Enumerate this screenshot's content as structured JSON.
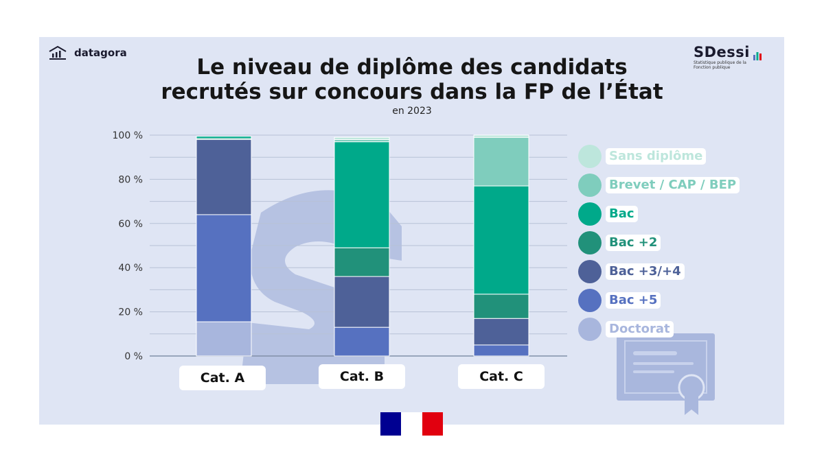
{
  "header": {
    "left_logo": "datagora",
    "right_logo": "SDessi",
    "right_logo_sub": "Statistique publique de la Fonction publique",
    "title_line1": "Le niveau de diplôme des candidats",
    "title_line2": "recrutés sur concours dans la FP de l’État",
    "subtitle": "en 2023"
  },
  "colors": {
    "Sans diplôme": "#bde6dc",
    "Brevet / CAP / BEP": "#7fcdbd",
    "Bac": "#00a98a",
    "Bac +2": "#21917a",
    "Bac +3/+4": "#4e6198",
    "Bac +5": "#5671c0",
    "Doctorat": "#a8b6dd"
  },
  "chart_data": {
    "type": "bar",
    "stacked": true,
    "categories": [
      "Cat. A",
      "Cat. B",
      "Cat. C"
    ],
    "series": [
      {
        "name": "Doctorat",
        "values": [
          15.5,
          0,
          0
        ]
      },
      {
        "name": "Bac +5",
        "values": [
          48.5,
          13,
          5
        ]
      },
      {
        "name": "Bac +3/+4",
        "values": [
          34,
          23,
          12
        ]
      },
      {
        "name": "Bac +2",
        "values": [
          0.5,
          13,
          11
        ]
      },
      {
        "name": "Bac",
        "values": [
          1,
          48,
          49
        ]
      },
      {
        "name": "Brevet / CAP / BEP",
        "values": [
          0,
          1,
          22
        ]
      },
      {
        "name": "Sans diplôme",
        "values": [
          0,
          1,
          1
        ]
      }
    ],
    "ylim": [
      0,
      100
    ],
    "yticks": [
      "0 %",
      "20 %",
      "40 %",
      "60 %",
      "80 %",
      "100 %"
    ],
    "ytick_values": [
      0,
      20,
      40,
      60,
      80,
      100
    ],
    "legend_order": [
      "Sans diplôme",
      "Brevet / CAP / BEP",
      "Bac",
      "Bac +2",
      "Bac +3/+4",
      "Bac +5",
      "Doctorat"
    ],
    "legend_position": "right",
    "grid": true
  }
}
